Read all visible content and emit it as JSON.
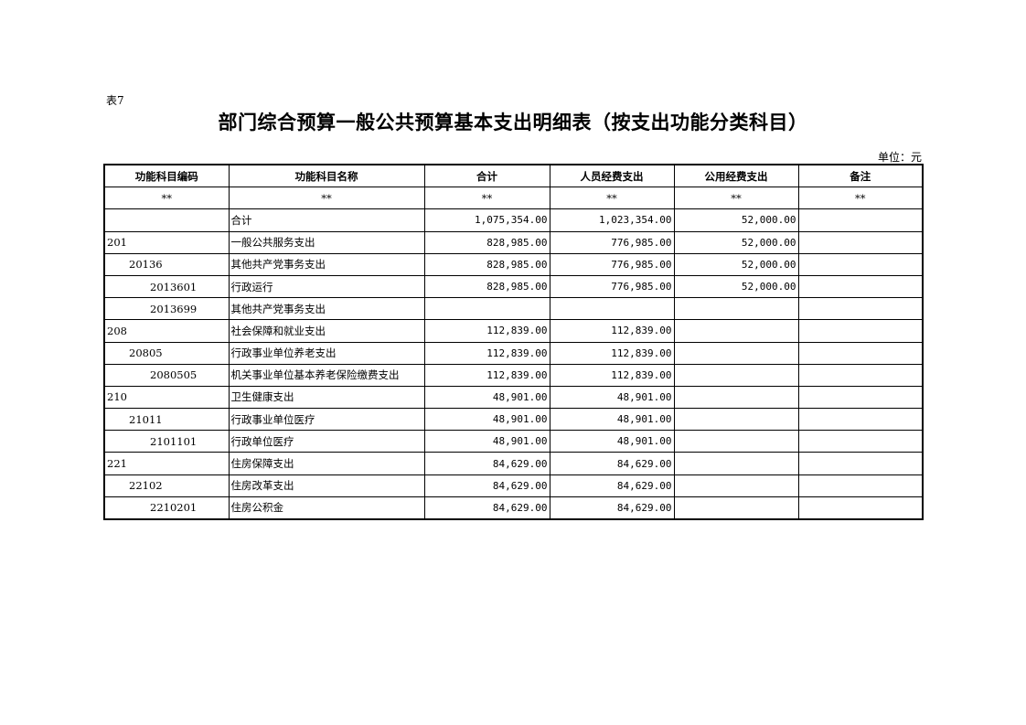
{
  "table_no": "表7",
  "title": "部门综合预算一般公共预算基本支出明细表（按支出功能分类科目）",
  "unit": "单位：元",
  "columns": [
    "功能科目编码",
    "功能科目名称",
    "合计",
    "人员经费支出",
    "公用经费支出",
    "备注"
  ],
  "marker_row": [
    "**",
    "**",
    "**",
    "**",
    "**",
    "**"
  ],
  "rows": [
    {
      "code": "",
      "level": 0,
      "name": "合计",
      "total": "1,075,354.00",
      "personnel": "1,023,354.00",
      "public": "52,000.00",
      "note": ""
    },
    {
      "code": "201",
      "level": 0,
      "name": "一般公共服务支出",
      "total": "828,985.00",
      "personnel": "776,985.00",
      "public": "52,000.00",
      "note": ""
    },
    {
      "code": "20136",
      "level": 1,
      "name": "其他共产党事务支出",
      "total": "828,985.00",
      "personnel": "776,985.00",
      "public": "52,000.00",
      "note": ""
    },
    {
      "code": "2013601",
      "level": 2,
      "name": "行政运行",
      "total": "828,985.00",
      "personnel": "776,985.00",
      "public": "52,000.00",
      "note": ""
    },
    {
      "code": "2013699",
      "level": 2,
      "name": "其他共产党事务支出",
      "total": "",
      "personnel": "",
      "public": "",
      "note": ""
    },
    {
      "code": "208",
      "level": 0,
      "name": "社会保障和就业支出",
      "total": "112,839.00",
      "personnel": "112,839.00",
      "public": "",
      "note": ""
    },
    {
      "code": "20805",
      "level": 1,
      "name": "行政事业单位养老支出",
      "total": "112,839.00",
      "personnel": "112,839.00",
      "public": "",
      "note": ""
    },
    {
      "code": "2080505",
      "level": 2,
      "name": "机关事业单位基本养老保险缴费支出",
      "total": "112,839.00",
      "personnel": "112,839.00",
      "public": "",
      "note": ""
    },
    {
      "code": "210",
      "level": 0,
      "name": "卫生健康支出",
      "total": "48,901.00",
      "personnel": "48,901.00",
      "public": "",
      "note": ""
    },
    {
      "code": "21011",
      "level": 1,
      "name": "行政事业单位医疗",
      "total": "48,901.00",
      "personnel": "48,901.00",
      "public": "",
      "note": ""
    },
    {
      "code": "2101101",
      "level": 2,
      "name": "行政单位医疗",
      "total": "48,901.00",
      "personnel": "48,901.00",
      "public": "",
      "note": ""
    },
    {
      "code": "221",
      "level": 0,
      "name": "住房保障支出",
      "total": "84,629.00",
      "personnel": "84,629.00",
      "public": "",
      "note": ""
    },
    {
      "code": "22102",
      "level": 1,
      "name": "住房改革支出",
      "total": "84,629.00",
      "personnel": "84,629.00",
      "public": "",
      "note": ""
    },
    {
      "code": "2210201",
      "level": 2,
      "name": "住房公积金",
      "total": "84,629.00",
      "personnel": "84,629.00",
      "public": "",
      "note": ""
    }
  ]
}
